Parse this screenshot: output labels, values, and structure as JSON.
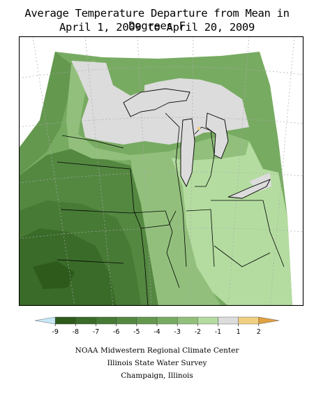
{
  "title_line1": "Average Temperature Departure from Mean in Degrees F",
  "title_line2": "April 1, 2009 to April 20, 2009",
  "legend": {
    "ticks": [
      "-9",
      "-8",
      "-7",
      "-6",
      "-5",
      "-4",
      "-3",
      "-2",
      "-1",
      "1",
      "2"
    ],
    "colors": [
      "#c8e8f8",
      "#2e5a1c",
      "#3a6b29",
      "#477a35",
      "#548841",
      "#64984f",
      "#78ab62",
      "#92c07c",
      "#b4dca0",
      "#dcdcdc",
      "#f0d080",
      "#dfa040"
    ]
  },
  "credits": {
    "line1": "NOAA Midwestern Regional Climate Center",
    "line2": "Illinois State Water Survey",
    "line3": "Champaign, Illinois"
  }
}
